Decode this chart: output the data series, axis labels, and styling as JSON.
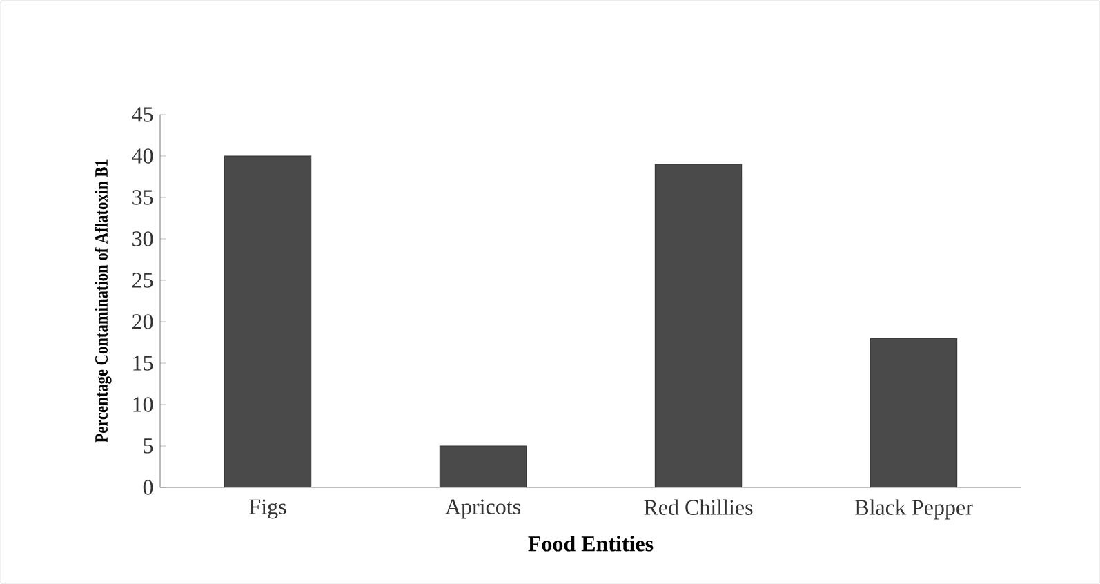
{
  "chart_data": {
    "type": "bar",
    "xlabel": "Food Entities",
    "ylabel": "Percentage Contamination of Aflatoxin B1",
    "categories": [
      "Figs",
      "Apricots",
      "Red Chillies",
      "Black Pepper"
    ],
    "values": [
      40,
      5,
      39,
      18
    ],
    "color": "#4a4a4a",
    "ylim": [
      0,
      45
    ],
    "yticks": [
      0,
      5,
      10,
      15,
      20,
      25,
      30,
      35,
      40,
      45
    ]
  }
}
